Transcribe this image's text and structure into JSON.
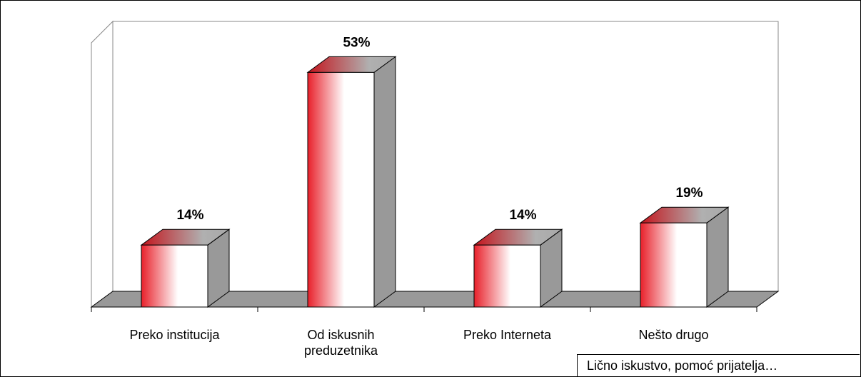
{
  "chart_data": {
    "type": "bar3d",
    "categories": [
      "Preko institucija",
      "Od iskusnih preduzetnika",
      "Preko Interneta",
      "Nešto drugo"
    ],
    "values": [
      14,
      53,
      14,
      19
    ],
    "value_labels": [
      "14%",
      "53%",
      "14%",
      "19%"
    ],
    "color": "#e8202a",
    "annotation": "Lično iskustvo, pomoć prijatelja…"
  }
}
